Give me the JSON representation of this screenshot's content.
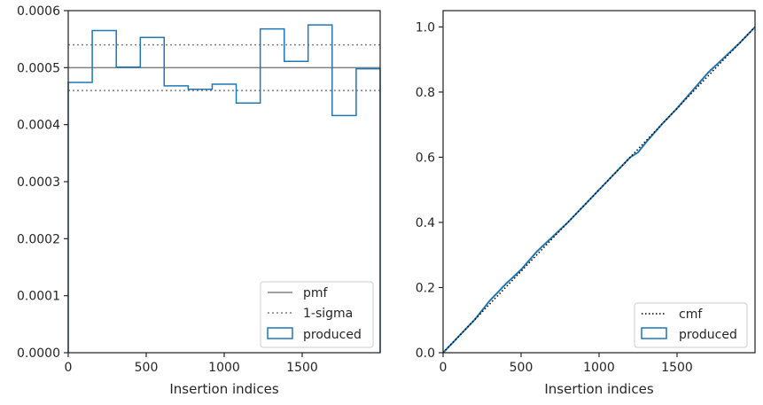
{
  "colors": {
    "produced": "#1f77b4",
    "pmf": "#808080",
    "sigma": "#808080",
    "cmf": "#000000",
    "axes": "#262626",
    "legend_frame": "#cccccc"
  },
  "chart_data": [
    {
      "type": "step-histogram",
      "title": "",
      "xlabel": "Insertion indices",
      "ylabel": "",
      "xlim": [
        0,
        2000
      ],
      "ylim": [
        0,
        0.0006
      ],
      "xticks": [
        0,
        500,
        1000,
        1500
      ],
      "xtick_labels": [
        "0",
        "500",
        "1000",
        "1500"
      ],
      "yticks": [
        0,
        0.0001,
        0.0002,
        0.0003,
        0.0004,
        0.0005,
        0.0006
      ],
      "ytick_labels": [
        "0.0000",
        "0.0001",
        "0.0002",
        "0.0003",
        "0.0004",
        "0.0005",
        "0.0006"
      ],
      "pmf": 0.0005,
      "sigma_lower": 0.00046,
      "sigma_upper": 0.00054,
      "bin_edges": [
        0,
        154,
        308,
        462,
        615,
        769,
        923,
        1077,
        1231,
        1385,
        1538,
        1692,
        1846,
        2000
      ],
      "values": [
        0.000474,
        0.000565,
        0.000501,
        0.000553,
        0.000468,
        0.000462,
        0.000471,
        0.000438,
        0.000568,
        0.000511,
        0.000575,
        0.000416,
        0.000498
      ],
      "legend": [
        "pmf",
        "1-sigma",
        "produced"
      ],
      "legend_position": "lower-right"
    },
    {
      "type": "line",
      "title": "",
      "xlabel": "Insertion indices",
      "ylabel": "",
      "xlim": [
        0,
        2000
      ],
      "ylim": [
        0,
        1.05
      ],
      "xticks": [
        0,
        500,
        1000,
        1500
      ],
      "xtick_labels": [
        "0",
        "500",
        "1000",
        "1500"
      ],
      "yticks": [
        0,
        0.2,
        0.4,
        0.6,
        0.8,
        1.0
      ],
      "ytick_labels": [
        "0.0",
        "0.2",
        "0.4",
        "0.6",
        "0.8",
        "1.0"
      ],
      "cmf": {
        "x": [
          0,
          2000
        ],
        "y": [
          0,
          1.0
        ]
      },
      "produced": {
        "x": [
          0,
          100,
          200,
          300,
          400,
          500,
          600,
          700,
          800,
          900,
          1000,
          1100,
          1200,
          1250,
          1300,
          1400,
          1500,
          1600,
          1700,
          1800,
          1900,
          2000
        ],
        "y": [
          0,
          0.05,
          0.1,
          0.16,
          0.21,
          0.255,
          0.31,
          0.355,
          0.4,
          0.45,
          0.5,
          0.55,
          0.6,
          0.615,
          0.645,
          0.7,
          0.75,
          0.805,
          0.86,
          0.905,
          0.95,
          1.0
        ]
      },
      "legend": [
        "cmf",
        "produced"
      ],
      "legend_position": "lower-right"
    }
  ]
}
